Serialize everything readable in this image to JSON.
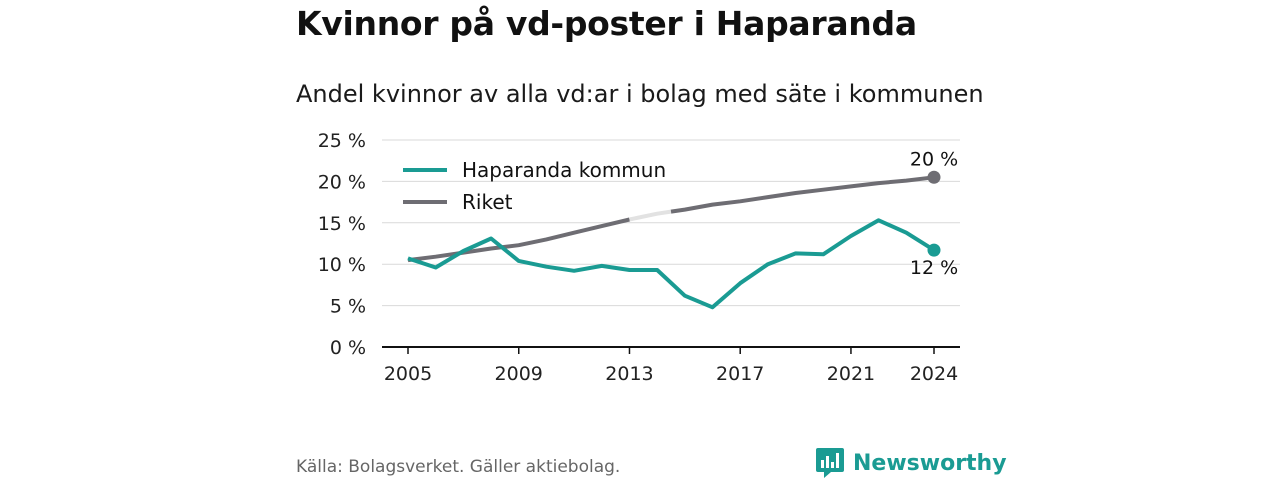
{
  "title": "Kvinnor på vd-poster i Haparanda",
  "subtitle": "Andel kvinnor av alla vd:ar i bolag med säte i kommunen",
  "source": "Källa: Bolagsverket. Gäller aktiebolag.",
  "brand": {
    "name": "Newsworthy",
    "icon": "newsworthy-chart-icon",
    "color": "#1a9b93"
  },
  "chart_data": {
    "type": "line",
    "ylim": [
      0,
      25
    ],
    "xlim": [
      2005,
      2024
    ],
    "y_ticks": [
      0,
      5,
      10,
      15,
      20,
      25
    ],
    "y_tick_labels": [
      "0 %",
      "5 %",
      "10 %",
      "15 %",
      "20 %",
      "25 %"
    ],
    "x_ticks": [
      2005,
      2009,
      2013,
      2017,
      2021,
      2024
    ],
    "x_tick_labels": [
      "2005",
      "2009",
      "2013",
      "2017",
      "2021",
      "2024"
    ],
    "grid": true,
    "legend": "top-left",
    "series": [
      {
        "name": "Haparanda kommun",
        "color": "#1a9b93",
        "x": [
          2005,
          2006,
          2007,
          2008,
          2009,
          2010,
          2011,
          2012,
          2013,
          2014,
          2015,
          2016,
          2017,
          2018,
          2019,
          2020,
          2021,
          2022,
          2023,
          2024
        ],
        "values": [
          10.7,
          9.6,
          11.6,
          13.1,
          10.4,
          9.7,
          9.2,
          9.8,
          9.3,
          9.3,
          6.2,
          4.8,
          7.7,
          10.0,
          11.3,
          11.2,
          13.4,
          15.3,
          13.8,
          11.7
        ],
        "end_label": "12 %"
      },
      {
        "name": "Riket",
        "color": "#6e6d73",
        "gap_color": "#e2e2e2",
        "x": [
          2005,
          2006,
          2007,
          2008,
          2009,
          2010,
          2011,
          2012,
          2013,
          2014,
          2015,
          2016,
          2017,
          2018,
          2019,
          2020,
          2021,
          2022,
          2023,
          2024
        ],
        "values": [
          10.5,
          10.9,
          11.4,
          11.9,
          12.3,
          13.0,
          13.8,
          14.6,
          15.4,
          16.1,
          16.6,
          17.2,
          17.6,
          18.1,
          18.6,
          19.0,
          19.4,
          19.8,
          20.1,
          20.5
        ],
        "gap_range": [
          2013,
          2014.5
        ],
        "end_label": "20 %"
      }
    ]
  }
}
